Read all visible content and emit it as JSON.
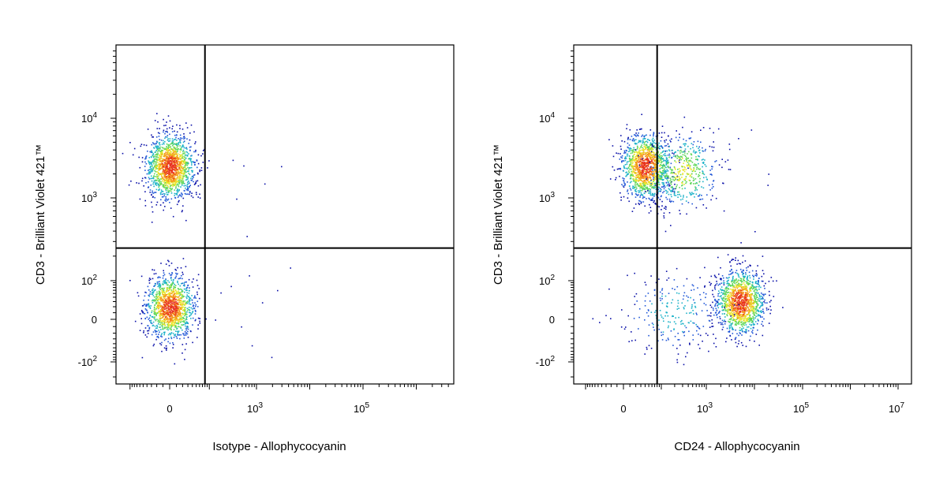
{
  "chart_data": [
    {
      "type": "scatter",
      "title": "",
      "xlabel": "Isotype - Allophycocyanin",
      "ylabel": "CD3 - Brilliant Violet 421™",
      "x_scale": "biexponential",
      "y_scale": "biexponential",
      "x_ticks": [
        {
          "value": 0,
          "label": "0"
        },
        {
          "value": 1000,
          "base": "10",
          "exp": "3"
        },
        {
          "value": 100000,
          "base": "10",
          "exp": "5"
        }
      ],
      "y_ticks": [
        {
          "value": -100,
          "base": "-10",
          "exp": "2"
        },
        {
          "value": 0,
          "label": "0"
        },
        {
          "value": 100,
          "base": "10",
          "exp": "2"
        },
        {
          "value": 1000,
          "base": "10",
          "exp": "3"
        },
        {
          "value": 10000,
          "base": "10",
          "exp": "4"
        }
      ],
      "quadrant_gate": {
        "x": 80,
        "y": 250
      },
      "populations": [
        {
          "name": "",
          "x_center": 0,
          "y_center": 2500,
          "events": 1500,
          "density": "high"
        },
        {
          "name": "",
          "x_center": 0,
          "y_center": 20,
          "events": 1300,
          "density": "high"
        }
      ],
      "outliers": [
        {
          "x": 300,
          "y": 3000
        },
        {
          "x": 500,
          "y": 2500
        },
        {
          "x": 1500,
          "y": 1500
        },
        {
          "x": 3000,
          "y": 2500
        },
        {
          "x": 400,
          "y": 1000
        },
        {
          "x": 600,
          "y": 350
        },
        {
          "x": 300,
          "y": 80
        },
        {
          "x": 700,
          "y": 120
        },
        {
          "x": 1200,
          "y": 30
        },
        {
          "x": 2500,
          "y": 60
        },
        {
          "x": 4000,
          "y": 150
        },
        {
          "x": 500,
          "y": -10
        },
        {
          "x": 800,
          "y": -40
        },
        {
          "x": 2000,
          "y": -80
        }
      ]
    },
    {
      "type": "scatter",
      "title": "",
      "xlabel": "CD24 - Allophycocyanin",
      "ylabel": "CD3 - Brilliant Violet 421™",
      "x_scale": "biexponential",
      "y_scale": "biexponential",
      "x_ticks": [
        {
          "value": 0,
          "label": "0"
        },
        {
          "value": 1000,
          "base": "10",
          "exp": "3"
        },
        {
          "value": 100000,
          "base": "10",
          "exp": "5"
        },
        {
          "value": 10000000,
          "base": "10",
          "exp": "7"
        }
      ],
      "y_ticks": [
        {
          "value": -100,
          "base": "-10",
          "exp": "2"
        },
        {
          "value": 0,
          "label": "0"
        },
        {
          "value": 100,
          "base": "10",
          "exp": "2"
        },
        {
          "value": 1000,
          "base": "10",
          "exp": "3"
        },
        {
          "value": 10000,
          "base": "10",
          "exp": "4"
        }
      ],
      "quadrant_gate": {
        "x": 80,
        "y": 250
      },
      "populations": [
        {
          "name": "",
          "x_center": 40,
          "y_center": 2500,
          "events": 1300,
          "density": "high"
        },
        {
          "name": "",
          "x_center": 300,
          "y_center": 2200,
          "events": 500,
          "density": "medium"
        },
        {
          "name": "",
          "x_center": 5000,
          "y_center": 30,
          "events": 1300,
          "density": "high"
        },
        {
          "name": "",
          "x_center": 200,
          "y_center": 10,
          "events": 250,
          "density": "low"
        }
      ],
      "outliers": [
        {
          "x": 3000,
          "y": 5000
        },
        {
          "x": 8000,
          "y": 7000
        },
        {
          "x": 20000,
          "y": 2000
        },
        {
          "x": 20000,
          "y": 1500
        },
        {
          "x": 10000,
          "y": 400
        },
        {
          "x": 5000,
          "y": 300
        }
      ]
    }
  ]
}
